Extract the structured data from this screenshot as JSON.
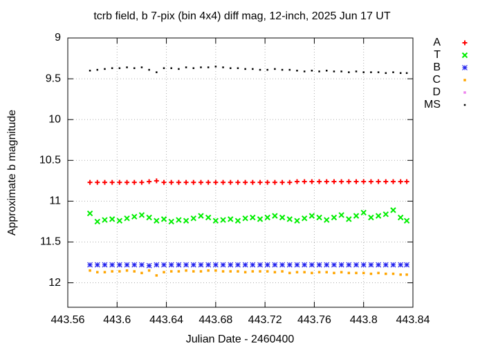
{
  "chart_data": {
    "type": "scatter",
    "title": "tcrb field, b 7-pix (bin 4x4) diff mag, 12-inch, 2025 Jun 17 UT",
    "x_label": "Julian Date - 2460400",
    "y_label": "Approximate b magnitude",
    "xlim": [
      443.56,
      443.84
    ],
    "xticks": [
      443.56,
      443.6,
      443.64,
      443.68,
      443.72,
      443.76,
      443.8,
      443.84
    ],
    "ylim": [
      9,
      12.3
    ],
    "yticks": [
      9,
      9.5,
      10,
      10.5,
      11,
      11.5,
      12
    ],
    "y_inverted": true,
    "grid": true,
    "legend": "right",
    "x": [
      443.578,
      443.584,
      443.59,
      443.596,
      443.602,
      443.608,
      443.614,
      443.62,
      443.626,
      443.632,
      443.638,
      443.644,
      443.65,
      443.656,
      443.662,
      443.668,
      443.674,
      443.68,
      443.686,
      443.692,
      443.698,
      443.704,
      443.71,
      443.716,
      443.722,
      443.728,
      443.734,
      443.74,
      443.746,
      443.752,
      443.758,
      443.764,
      443.77,
      443.776,
      443.782,
      443.788,
      443.794,
      443.8,
      443.806,
      443.812,
      443.818,
      443.824,
      443.83,
      443.835
    ],
    "series": [
      {
        "name": "A",
        "color": "#ff0000",
        "marker": "plus",
        "values": [
          10.77,
          10.77,
          10.77,
          10.77,
          10.77,
          10.77,
          10.77,
          10.77,
          10.76,
          10.75,
          10.77,
          10.77,
          10.77,
          10.77,
          10.77,
          10.77,
          10.77,
          10.77,
          10.77,
          10.77,
          10.77,
          10.77,
          10.77,
          10.77,
          10.77,
          10.77,
          10.77,
          10.77,
          10.76,
          10.76,
          10.76,
          10.76,
          10.76,
          10.76,
          10.76,
          10.76,
          10.76,
          10.76,
          10.76,
          10.76,
          10.76,
          10.76,
          10.76,
          10.76
        ]
      },
      {
        "name": "T",
        "color": "#00ee00",
        "marker": "cross",
        "values": [
          11.15,
          11.25,
          11.23,
          11.22,
          11.24,
          11.21,
          11.19,
          11.17,
          11.2,
          11.24,
          11.22,
          11.25,
          11.23,
          11.24,
          11.21,
          11.18,
          11.2,
          11.24,
          11.23,
          11.22,
          11.24,
          11.21,
          11.2,
          11.22,
          11.2,
          11.18,
          11.2,
          11.22,
          11.24,
          11.21,
          11.18,
          11.2,
          11.23,
          11.2,
          11.17,
          11.22,
          11.18,
          11.14,
          11.2,
          11.18,
          11.16,
          11.11,
          11.2,
          11.24
        ]
      },
      {
        "name": "B",
        "color": "#2222ee",
        "marker": "star",
        "values": [
          11.78,
          11.78,
          11.78,
          11.78,
          11.78,
          11.78,
          11.78,
          11.78,
          11.79,
          11.78,
          11.78,
          11.78,
          11.78,
          11.78,
          11.78,
          11.78,
          11.78,
          11.78,
          11.78,
          11.78,
          11.78,
          11.78,
          11.78,
          11.78,
          11.78,
          11.78,
          11.78,
          11.78,
          11.78,
          11.78,
          11.78,
          11.78,
          11.78,
          11.78,
          11.78,
          11.78,
          11.78,
          11.78,
          11.78,
          11.78,
          11.78,
          11.78,
          11.78,
          11.78
        ]
      },
      {
        "name": "C",
        "color": "#ffa500",
        "marker": "square",
        "values": [
          11.85,
          11.87,
          11.87,
          11.86,
          11.86,
          11.85,
          11.86,
          11.88,
          11.85,
          11.91,
          11.87,
          11.86,
          11.86,
          11.85,
          11.86,
          11.86,
          11.85,
          11.85,
          11.86,
          11.86,
          11.86,
          11.87,
          11.86,
          11.86,
          11.86,
          11.87,
          11.86,
          11.88,
          11.87,
          11.87,
          11.88,
          11.87,
          11.87,
          11.88,
          11.87,
          11.88,
          11.88,
          11.88,
          11.89,
          11.88,
          11.89,
          11.89,
          11.9,
          11.9
        ]
      },
      {
        "name": "D",
        "color": "#ee82ee",
        "marker": "square",
        "values": [
          null,
          null,
          null,
          null,
          null,
          null,
          null,
          null,
          null,
          null,
          null,
          null,
          null,
          null,
          null,
          null,
          null,
          null,
          null,
          null,
          null,
          null,
          null,
          null,
          null,
          null,
          null,
          null,
          null,
          null,
          null,
          null,
          null,
          null,
          null,
          null,
          null,
          null,
          null,
          null,
          null,
          null,
          null,
          null
        ]
      },
      {
        "name": "MS",
        "color": "#000000",
        "marker": "dot",
        "values": [
          9.4,
          9.39,
          9.38,
          9.37,
          9.37,
          9.36,
          9.37,
          9.36,
          9.39,
          9.42,
          9.37,
          9.37,
          9.38,
          9.36,
          9.37,
          9.36,
          9.36,
          9.35,
          9.36,
          9.37,
          9.37,
          9.38,
          9.38,
          9.39,
          9.39,
          9.38,
          9.39,
          9.39,
          9.4,
          9.41,
          9.4,
          9.41,
          9.4,
          9.41,
          9.41,
          9.42,
          9.41,
          9.42,
          9.42,
          9.42,
          9.43,
          9.42,
          9.43,
          9.43
        ]
      }
    ]
  }
}
